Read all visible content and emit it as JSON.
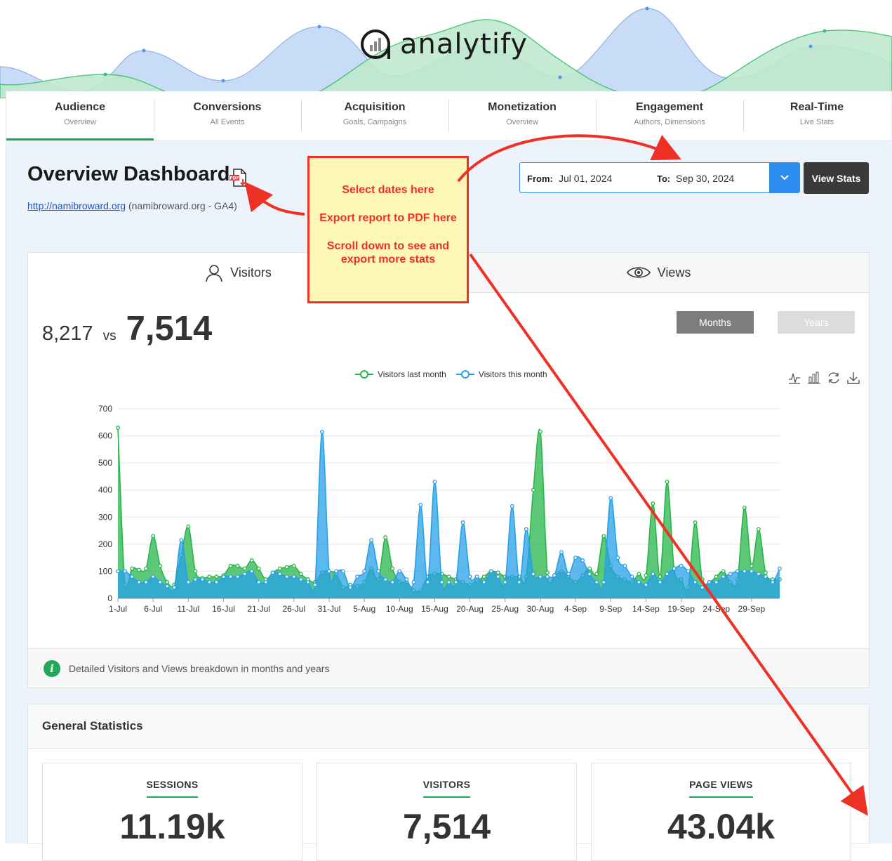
{
  "brand": {
    "logo_text": "analytify"
  },
  "nav": {
    "tabs": [
      {
        "title": "Audience",
        "subtitle": "Overview",
        "active": true
      },
      {
        "title": "Conversions",
        "subtitle": "All Events"
      },
      {
        "title": "Acquisition",
        "subtitle": "Goals, Campaigns"
      },
      {
        "title": "Monetization",
        "subtitle": "Overview"
      },
      {
        "title": "Engagement",
        "subtitle": "Authors, Dimensions"
      },
      {
        "title": "Real-Time",
        "subtitle": "Live Stats"
      }
    ]
  },
  "header": {
    "title": "Overview Dashboard",
    "pdf_icon": "pdf-export-icon",
    "site_url": "http://namibroward.org",
    "site_meta": "(namibroward.org - GA4)"
  },
  "date_range": {
    "from_label": "From:",
    "from_value": "Jul 01, 2024",
    "to_label": "To:",
    "to_value": "Sep 30, 2024",
    "button": "View Stats"
  },
  "visitors_card": {
    "tabs": [
      {
        "label": "Visitors",
        "icon": "user-icon"
      },
      {
        "label": "Views",
        "icon": "eye-icon"
      }
    ],
    "prev_value": "8,217",
    "vs": "vs",
    "current_value": "7,514",
    "period_buttons": [
      "Months",
      "Years"
    ],
    "footer_text": "Detailed Visitors and Views breakdown in months and years"
  },
  "chart_data": {
    "type": "area",
    "ylim": [
      0,
      700
    ],
    "y_ticks": [
      "700",
      "600",
      "500",
      "400",
      "300",
      "200",
      "100",
      "0"
    ],
    "x_tick_labels": [
      "1-Jul",
      "6-Jul",
      "11-Jul",
      "16-Jul",
      "21-Jul",
      "26-Jul",
      "31-Jul",
      "5-Aug",
      "10-Aug",
      "15-Aug",
      "20-Aug",
      "25-Aug",
      "30-Aug",
      "4-Sep",
      "9-Sep",
      "14-Sep",
      "19-Sep",
      "24-Sep",
      "29-Sep"
    ],
    "legend_position": "top-center",
    "series": [
      {
        "name": "Visitors last month",
        "color": "#27b54a",
        "values": [
          630,
          50,
          110,
          105,
          110,
          230,
          120,
          60,
          50,
          160,
          265,
          100,
          75,
          80,
          80,
          85,
          120,
          120,
          110,
          140,
          110,
          70,
          95,
          110,
          115,
          120,
          90,
          70,
          60,
          95,
          100,
          90,
          40,
          50,
          45,
          60,
          110,
          70,
          225,
          110,
          60,
          60,
          30,
          30,
          80,
          90,
          90,
          80,
          70,
          60,
          50,
          65,
          80,
          100,
          95,
          80,
          80,
          80,
          80,
          400,
          615,
          95,
          85,
          100,
          80,
          60,
          85,
          110,
          90,
          230,
          120,
          80,
          70,
          60,
          90,
          85,
          350,
          80,
          430,
          110,
          70,
          40,
          280,
          70,
          60,
          80,
          100,
          60,
          70,
          335,
          120,
          255,
          95,
          70,
          70
        ]
      },
      {
        "name": "Visitors this month",
        "color": "#27a0e8",
        "values": [
          100,
          100,
          80,
          60,
          60,
          80,
          60,
          45,
          40,
          215,
          60,
          70,
          70,
          60,
          60,
          80,
          80,
          80,
          90,
          100,
          60,
          60,
          95,
          90,
          80,
          80,
          70,
          60,
          50,
          615,
          100,
          100,
          100,
          40,
          80,
          100,
          215,
          100,
          70,
          60,
          100,
          70,
          60,
          345,
          60,
          430,
          60,
          60,
          60,
          280,
          80,
          80,
          60,
          100,
          80,
          60,
          340,
          60,
          255,
          90,
          80,
          80,
          85,
          170,
          90,
          150,
          140,
          90,
          60,
          60,
          370,
          150,
          120,
          80,
          60,
          50,
          90,
          60,
          90,
          110,
          120,
          100,
          60,
          40,
          60,
          60,
          80,
          90,
          100,
          100,
          100,
          90,
          80,
          60,
          110
        ]
      }
    ]
  },
  "general_stats": {
    "title": "General Statistics",
    "items": [
      {
        "label": "SESSIONS",
        "value": "11.19k"
      },
      {
        "label": "VISITORS",
        "value": "7,514"
      },
      {
        "label": "PAGE VIEWS",
        "value": "43.04k"
      }
    ]
  },
  "annotation": {
    "lines": [
      "Select dates here",
      "Export report to PDF here",
      "Scroll down to see and export more stats"
    ],
    "color": "#ee3124",
    "background": "#fef7b5"
  },
  "colors": {
    "accent_green": "#1da95a",
    "accent_blue": "#2e8ef0",
    "dark_button": "#3a3a3a"
  }
}
